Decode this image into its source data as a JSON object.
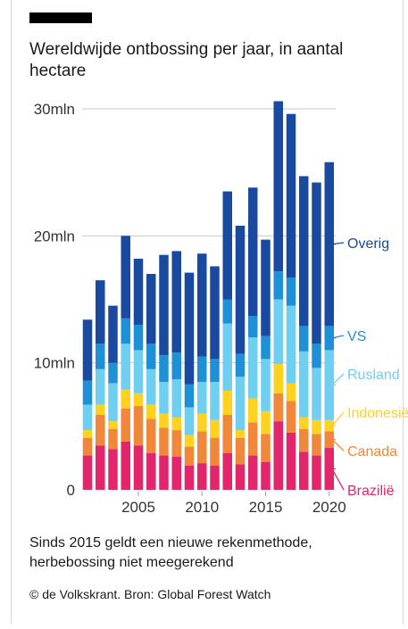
{
  "title": "Wereldwijde ontbossing per jaar, in aantal hectare",
  "note": "Sinds 2015 geldt een nieuwe rekenmethode, herbebossing niet meegerekend",
  "source": "© de Volkskrant. Bron: Global Forest Watch",
  "chart_data": {
    "type": "bar",
    "stacked": true,
    "categories": [
      "2001",
      "2002",
      "2003",
      "2004",
      "2005",
      "2006",
      "2007",
      "2008",
      "2009",
      "2010",
      "2011",
      "2012",
      "2013",
      "2014",
      "2015",
      "2016",
      "2017",
      "2018",
      "2019",
      "2020"
    ],
    "x_tick_labels": [
      "2005",
      "2010",
      "2015",
      "2020"
    ],
    "y_tick_labels": [
      "0",
      "10mln",
      "20mln",
      "30mln"
    ],
    "ylim": [
      0,
      30
    ],
    "grid": true,
    "series": [
      {
        "name": "Brazilië",
        "color": "#e3256b",
        "values": [
          2.7,
          3.5,
          3.2,
          3.8,
          3.5,
          2.9,
          2.7,
          2.6,
          1.9,
          2.1,
          1.9,
          2.9,
          2.0,
          2.7,
          2.2,
          5.4,
          4.5,
          3.0,
          2.7,
          3.3
        ]
      },
      {
        "name": "Canada",
        "color": "#f0873a",
        "values": [
          1.4,
          2.4,
          1.6,
          2.6,
          3.1,
          2.7,
          2.2,
          2.1,
          1.5,
          2.5,
          2.2,
          3.0,
          2.1,
          2.6,
          2.2,
          2.2,
          2.5,
          1.8,
          1.7,
          1.3
        ]
      },
      {
        "name": "Indonesië",
        "color": "#ffd21f",
        "values": [
          0.6,
          0.8,
          0.6,
          1.5,
          1.0,
          1.1,
          1.1,
          1.0,
          0.9,
          1.4,
          1.4,
          1.9,
          0.6,
          1.9,
          1.8,
          2.3,
          1.4,
          0.9,
          1.1,
          0.9
        ]
      },
      {
        "name": "Rusland",
        "color": "#6ecff0",
        "values": [
          2.0,
          2.8,
          3.0,
          3.6,
          3.4,
          2.8,
          2.5,
          3.0,
          2.2,
          2.5,
          3.0,
          5.3,
          4.2,
          4.8,
          4.1,
          5.1,
          6.1,
          5.2,
          4.1,
          5.5
        ]
      },
      {
        "name": "VS",
        "color": "#1e90d8",
        "values": [
          1.9,
          2.0,
          1.6,
          2.0,
          2.0,
          2.0,
          2.1,
          2.1,
          1.8,
          2.0,
          1.8,
          1.9,
          1.8,
          1.7,
          1.8,
          2.2,
          2.2,
          2.0,
          1.9,
          1.9
        ]
      },
      {
        "name": "Overig",
        "color": "#1a4aa0",
        "values": [
          4.8,
          5.0,
          4.5,
          6.5,
          5.2,
          5.5,
          7.9,
          8.0,
          8.8,
          8.1,
          7.3,
          8.5,
          10.1,
          10.1,
          7.6,
          13.4,
          12.9,
          11.8,
          12.7,
          12.9
        ]
      }
    ]
  }
}
